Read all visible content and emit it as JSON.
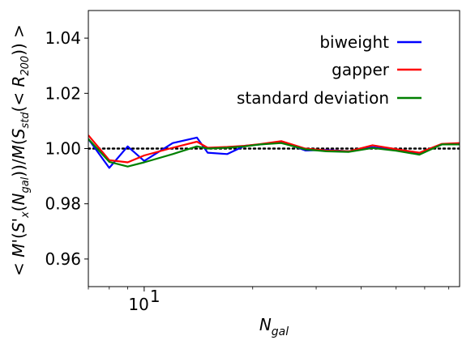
{
  "chart_data": {
    "type": "line",
    "xscale": "log",
    "xlim": [
      7.0,
      75.0
    ],
    "ylim": [
      0.95,
      1.05
    ],
    "yticks": [
      0.96,
      0.98,
      1.0,
      1.02,
      1.04
    ],
    "ytick_labels": [
      "0.96",
      "0.98",
      "1.00",
      "1.02",
      "1.04"
    ],
    "xticks": [
      10
    ],
    "xtick_labels": [
      "10"
    ],
    "xtick_labels_exponent": [
      "1"
    ],
    "xlabel": "N",
    "xlabel_subscript": "gal",
    "ylabel": "< M'(S'x(Ngal))/M(Sstd(< R200)) >",
    "reference_line": {
      "y": 1.0,
      "style": "dotted",
      "color": "#000000"
    },
    "legend_position": "upper right",
    "series": [
      {
        "name": "biweight",
        "color": "#0000ff",
        "x": [
          7,
          8,
          9,
          10,
          12,
          14,
          15,
          17,
          19,
          21,
          24,
          28,
          32,
          37,
          43,
          50,
          58,
          67,
          75
        ],
        "y": [
          1.0035,
          0.993,
          1.0008,
          0.9955,
          1.002,
          1.004,
          0.9985,
          0.998,
          1.001,
          1.0015,
          1.0025,
          0.9993,
          0.9995,
          0.999,
          1.0005,
          0.9995,
          0.998,
          1.0015,
          1.0018
        ]
      },
      {
        "name": "gapper",
        "color": "#ff0000",
        "x": [
          7,
          8,
          9,
          10,
          12,
          14,
          15,
          17,
          19,
          21,
          24,
          28,
          32,
          37,
          43,
          50,
          58,
          67,
          75
        ],
        "y": [
          1.0048,
          0.9958,
          0.995,
          0.9975,
          1.0003,
          1.0025,
          1.0003,
          1.0006,
          1.001,
          1.0016,
          1.0027,
          1.0,
          0.9993,
          0.999,
          1.0012,
          0.9998,
          0.9985,
          1.0017,
          1.002
        ]
      },
      {
        "name": "standard deviation",
        "color": "#008000",
        "x": [
          7,
          8,
          9,
          10,
          12,
          14,
          15,
          17,
          19,
          21,
          24,
          28,
          32,
          37,
          43,
          50,
          58,
          67,
          75
        ],
        "y": [
          1.0035,
          0.9952,
          0.9935,
          0.995,
          0.998,
          1.0008,
          1.0,
          1.0003,
          1.0008,
          1.0015,
          1.002,
          0.9997,
          0.999,
          0.9988,
          1.0002,
          0.9992,
          0.9978,
          1.0015,
          1.0015
        ]
      }
    ]
  }
}
